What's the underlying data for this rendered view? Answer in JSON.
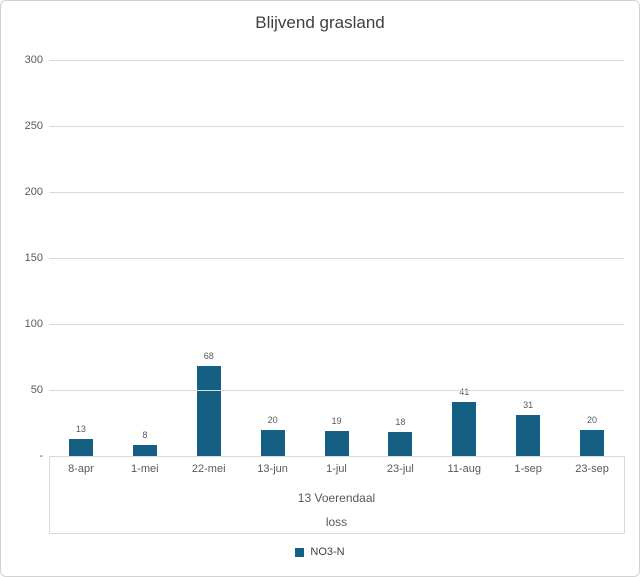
{
  "chart_data": {
    "type": "bar",
    "title": "Blijvend grasland",
    "categories": [
      "8-apr",
      "1-mei",
      "22-mei",
      "13-jun",
      "1-jul",
      "23-jul",
      "11-aug",
      "1-sep",
      "23-sep"
    ],
    "series": [
      {
        "name": "NO3-N",
        "values": [
          13,
          8,
          68,
          20,
          19,
          18,
          41,
          31,
          20
        ]
      }
    ],
    "group_label": "13 Voerendaal",
    "subgroup_label": "loss",
    "xlabel": "",
    "ylabel": "",
    "ylim": [
      0,
      300
    ],
    "ytick_values": [
      300,
      250,
      200,
      150,
      100,
      50,
      0
    ],
    "ytick_labels": [
      "300",
      "250",
      "200",
      "150",
      "100",
      "50",
      "-"
    ],
    "grid": true,
    "data_labels": true,
    "legend_position": "bottom"
  },
  "colors": {
    "bar": "#156082",
    "gridline": "#d9d9d9",
    "title_text": "#404040",
    "axis_text": "#595959",
    "frame_border": "#d2d2d2"
  }
}
